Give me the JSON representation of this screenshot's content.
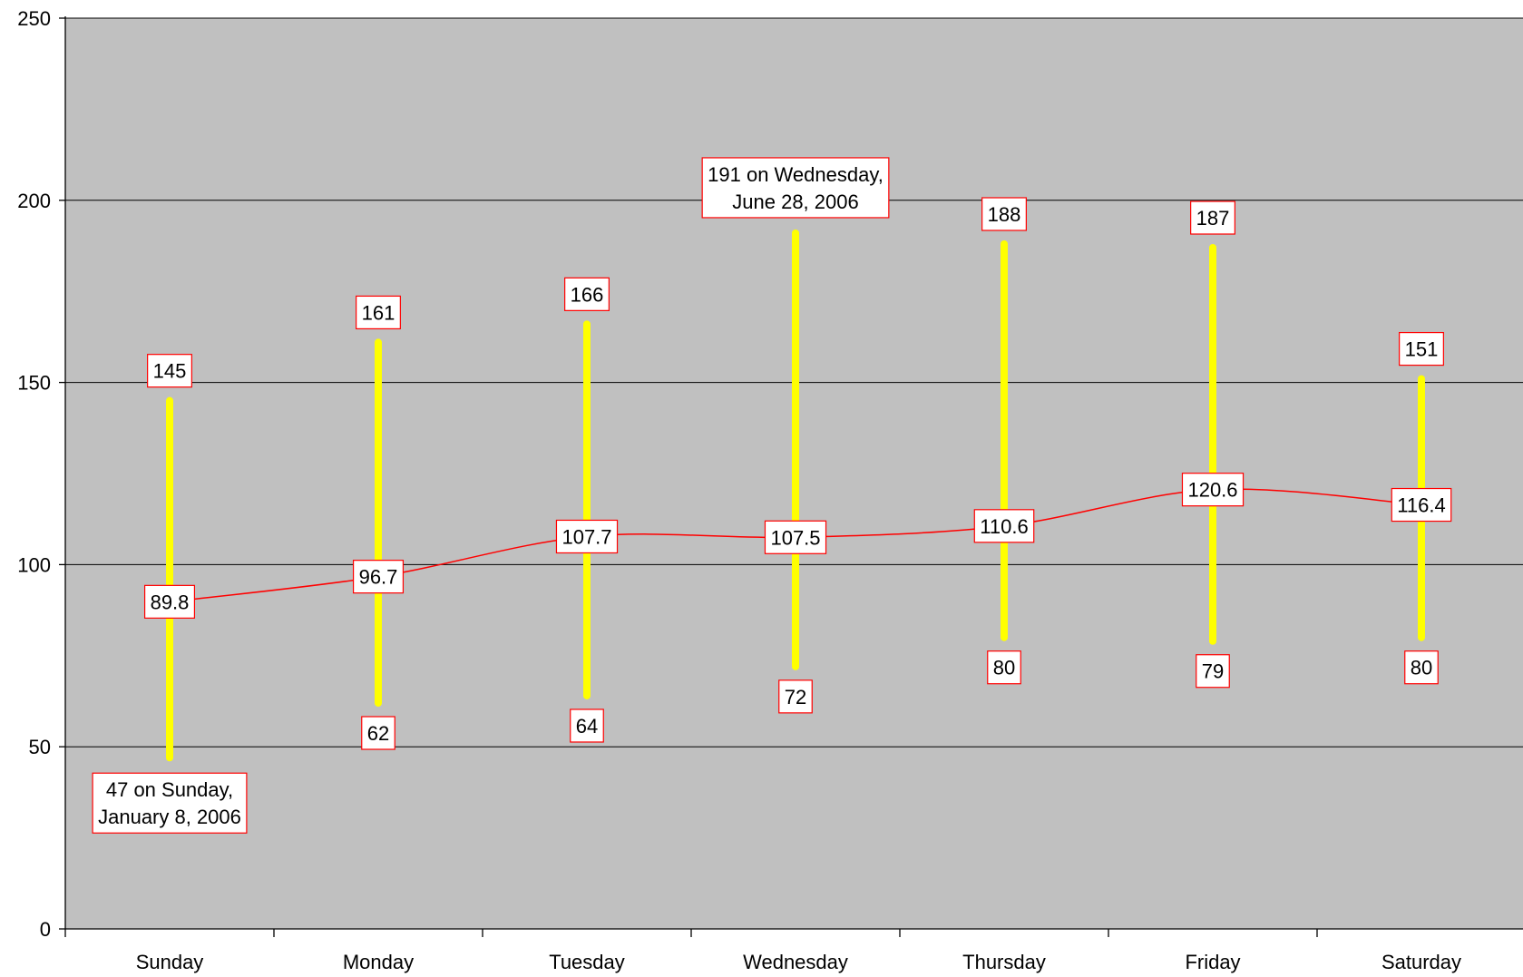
{
  "chart_data": {
    "type": "line",
    "categories": [
      "Sunday",
      "Monday",
      "Tuesday",
      "Wednesday",
      "Thursday",
      "Friday",
      "Saturday"
    ],
    "ylim": [
      0,
      250
    ],
    "yticks": [
      0,
      50,
      100,
      150,
      200,
      250
    ],
    "grid": true,
    "legend": "none",
    "series": [
      {
        "kind": "range",
        "high": [
          145,
          161,
          166,
          191,
          188,
          187,
          151
        ],
        "low": [
          47,
          62,
          64,
          72,
          80,
          79,
          80
        ],
        "color": "#ffff00"
      },
      {
        "kind": "line",
        "values": [
          89.8,
          96.7,
          107.7,
          107.5,
          110.6,
          120.6,
          116.4
        ],
        "color": "#ff0000"
      }
    ],
    "annotations": {
      "high_labels": [
        "145",
        "161",
        "166",
        [
          "191 on Wednesday,",
          "June 28, 2006"
        ],
        "188",
        "187",
        "151"
      ],
      "low_labels": [
        [
          "47 on Sunday,",
          "January 8, 2006"
        ],
        "62",
        "64",
        "72",
        "80",
        "79",
        "80"
      ],
      "mean_labels": [
        "89.8",
        "96.7",
        "107.7",
        "107.5",
        "110.6",
        "120.6",
        "116.4"
      ]
    },
    "colors": {
      "plot_background": "#c0c0c0",
      "gridline": "#000000",
      "range_bar": "#ffff00",
      "mean_line": "#ff0000",
      "label_border": "#ff0000",
      "label_fill": "#ffffff"
    }
  }
}
